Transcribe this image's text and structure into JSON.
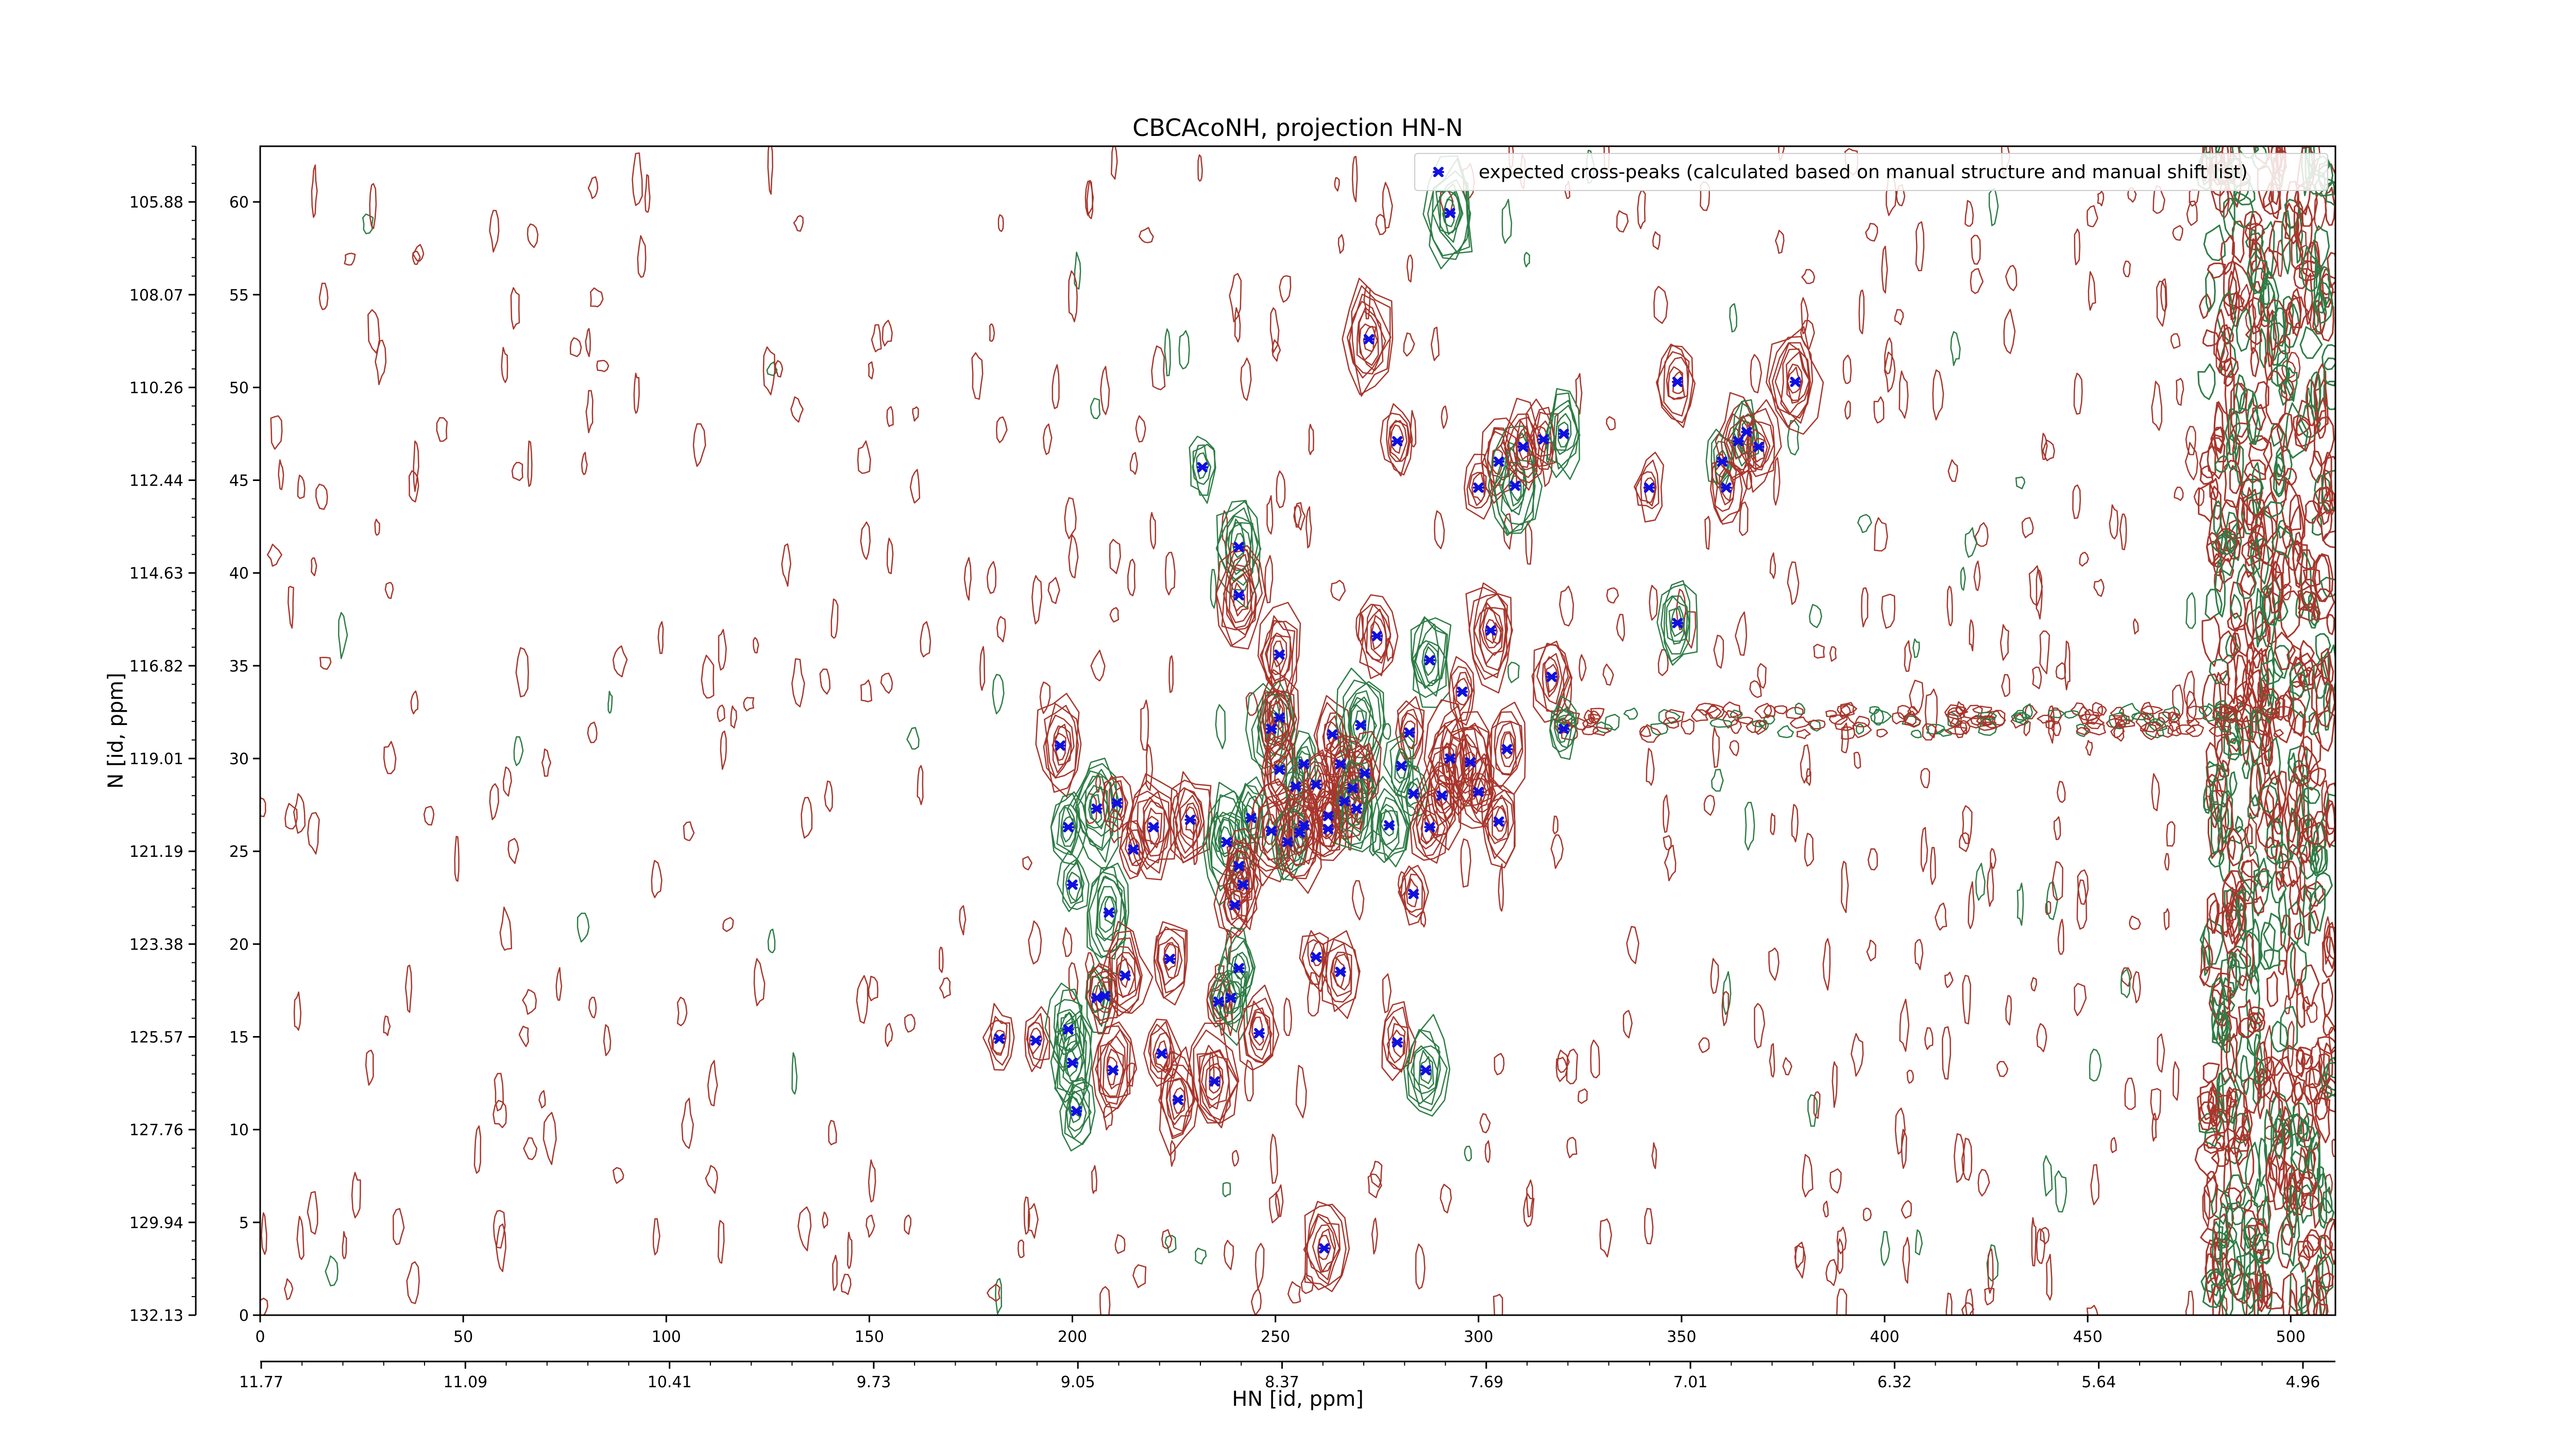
{
  "chart_data": {
    "type": "contour",
    "title": "CBCAcoNH, projection HN-N",
    "xlabel": "HN [id, ppm]",
    "ylabel": "N [id, ppm]",
    "xlim": [
      0,
      511
    ],
    "ylim": [
      0,
      63
    ],
    "x_index_ticks": [
      "0",
      "50",
      "100",
      "150",
      "200",
      "250",
      "300",
      "350",
      "400",
      "450",
      "500"
    ],
    "x_ppm_ticks": [
      "11.77",
      "11.09",
      "10.41",
      "9.73",
      "9.05",
      "8.37",
      "7.69",
      "7.01",
      "6.32",
      "5.64",
      "4.96"
    ],
    "y_index_ticks": [
      "0",
      "5",
      "10",
      "15",
      "20",
      "25",
      "30",
      "35",
      "40",
      "45",
      "50",
      "55",
      "60"
    ],
    "y_ppm_ticks": [
      "132.13",
      "129.94",
      "127.76",
      "125.57",
      "123.38",
      "121.19",
      "119.01",
      "116.82",
      "114.63",
      "112.44",
      "110.26",
      "108.07",
      "105.88"
    ],
    "legend": {
      "position": "top-right",
      "label": "expected cross-peaks (calculated based on manual structure and manual shift list)"
    },
    "colors": {
      "positive_contours": "#2e7d46",
      "negative_contours": "#a8362c",
      "markers": "#1010e0"
    },
    "series": [
      {
        "name": "expected cross-peaks (calculated based on manual structure and manual shift list)",
        "marker": "x",
        "points": [
          [
            293,
            59.4
          ],
          [
            273,
            52.6
          ],
          [
            280,
            47.1
          ],
          [
            232,
            45.7
          ],
          [
            300,
            44.6
          ],
          [
            305,
            46.0
          ],
          [
            309,
            44.7
          ],
          [
            311,
            46.8
          ],
          [
            316,
            47.2
          ],
          [
            321,
            47.5
          ],
          [
            342,
            44.6
          ],
          [
            349,
            50.3
          ],
          [
            360,
            46.0
          ],
          [
            361,
            44.6
          ],
          [
            364,
            47.1
          ],
          [
            366,
            47.6
          ],
          [
            369,
            46.8
          ],
          [
            378,
            50.3
          ],
          [
            241,
            41.4
          ],
          [
            241,
            38.8
          ],
          [
            303,
            36.9
          ],
          [
            349,
            37.3
          ],
          [
            275,
            36.6
          ],
          [
            251,
            35.6
          ],
          [
            288,
            35.3
          ],
          [
            318,
            34.4
          ],
          [
            296,
            33.6
          ],
          [
            249,
            31.6
          ],
          [
            251,
            32.2
          ],
          [
            264,
            31.3
          ],
          [
            271,
            31.8
          ],
          [
            283,
            31.4
          ],
          [
            307,
            30.5
          ],
          [
            321,
            31.6
          ],
          [
            197,
            30.7
          ],
          [
            251,
            29.4
          ],
          [
            257,
            29.7
          ],
          [
            266,
            29.7
          ],
          [
            272,
            29.2
          ],
          [
            281,
            29.6
          ],
          [
            293,
            30.0
          ],
          [
            298,
            29.8
          ],
          [
            255,
            28.5
          ],
          [
            260,
            28.6
          ],
          [
            269,
            28.4
          ],
          [
            284,
            28.1
          ],
          [
            291,
            28.0
          ],
          [
            300,
            28.2
          ],
          [
            206,
            27.3
          ],
          [
            211,
            27.6
          ],
          [
            229,
            26.7
          ],
          [
            244,
            26.8
          ],
          [
            263,
            26.9
          ],
          [
            267,
            27.7
          ],
          [
            270,
            27.3
          ],
          [
            257,
            26.4
          ],
          [
            263,
            26.2
          ],
          [
            278,
            26.4
          ],
          [
            288,
            26.3
          ],
          [
            305,
            26.6
          ],
          [
            199,
            26.3
          ],
          [
            220,
            26.3
          ],
          [
            249,
            26.1
          ],
          [
            253,
            25.5
          ],
          [
            256,
            26.0
          ],
          [
            215,
            25.1
          ],
          [
            238,
            25.5
          ],
          [
            241,
            24.2
          ],
          [
            242,
            23.2
          ],
          [
            200,
            23.2
          ],
          [
            284,
            22.7
          ],
          [
            240,
            22.1
          ],
          [
            209,
            21.7
          ],
          [
            260,
            19.3
          ],
          [
            224,
            19.2
          ],
          [
            241,
            18.7
          ],
          [
            266,
            18.5
          ],
          [
            213,
            18.3
          ],
          [
            206,
            17.1
          ],
          [
            208,
            17.2
          ],
          [
            236,
            16.9
          ],
          [
            239,
            17.1
          ],
          [
            182,
            14.9
          ],
          [
            191,
            14.8
          ],
          [
            199,
            15.4
          ],
          [
            246,
            15.2
          ],
          [
            222,
            14.1
          ],
          [
            200,
            13.6
          ],
          [
            210,
            13.2
          ],
          [
            280,
            14.7
          ],
          [
            287,
            13.2
          ],
          [
            235,
            12.6
          ],
          [
            226,
            11.6
          ],
          [
            201,
            11.0
          ],
          [
            262,
            3.6
          ]
        ]
      }
    ]
  }
}
